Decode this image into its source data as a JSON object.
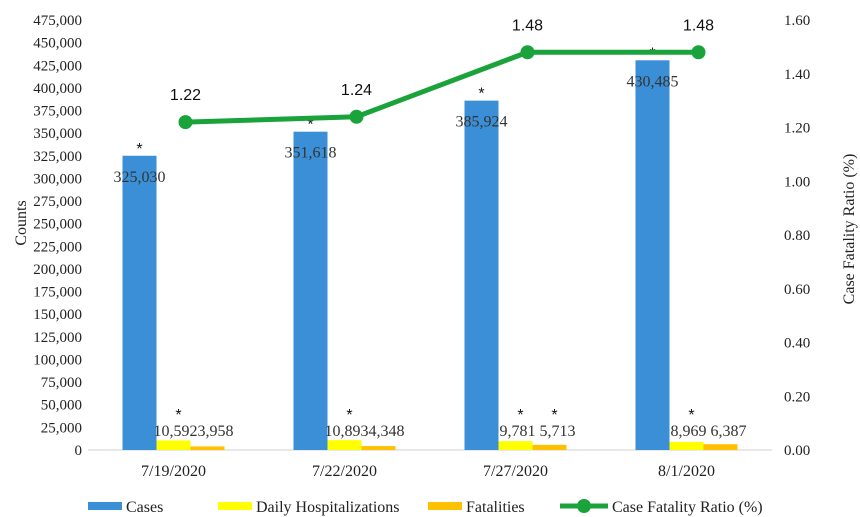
{
  "chart_data": {
    "type": "bar",
    "categories": [
      "7/19/2020",
      "7/22/2020",
      "7/27/2020",
      "8/1/2020"
    ],
    "series": [
      {
        "name": "Cases",
        "kind": "bar",
        "axis": "left",
        "color": "#3a8fd6",
        "values": [
          325030,
          351618,
          385924,
          430485
        ],
        "labels": [
          "325,030",
          "351,618",
          "385,924",
          "430,485"
        ],
        "star": [
          true,
          true,
          true,
          true
        ]
      },
      {
        "name": "Daily Hospitalizations",
        "kind": "bar",
        "axis": "left",
        "color": "#ffff00",
        "values": [
          10592,
          10893,
          9781,
          8969
        ],
        "labels": [
          "10,592",
          "10,893",
          "9,781",
          "8,969"
        ],
        "star": [
          true,
          true,
          true,
          true
        ]
      },
      {
        "name": "Fatalities",
        "kind": "bar",
        "axis": "left",
        "color": "#ffc000",
        "values": [
          3958,
          4348,
          5713,
          6387
        ],
        "labels": [
          "3,958",
          "4,348",
          "5,713",
          "6,387"
        ],
        "star": [
          false,
          false,
          true,
          false
        ]
      },
      {
        "name": "Case Fatality Ratio (%)",
        "kind": "line",
        "axis": "right",
        "color": "#1aa33a",
        "values": [
          1.22,
          1.24,
          1.48,
          1.48
        ],
        "labels": [
          "1.22",
          "1.24",
          "1.48",
          "1.48"
        ]
      }
    ],
    "star_symbol": "*",
    "ylabel": "Counts",
    "y2label": "Case Fatality Ratio (%)",
    "ylim": [
      0,
      475000
    ],
    "ytick_step": 25000,
    "y2lim": [
      0,
      1.6
    ],
    "y2tick_step": 0.2,
    "grid": false,
    "legend_position": "bottom"
  }
}
